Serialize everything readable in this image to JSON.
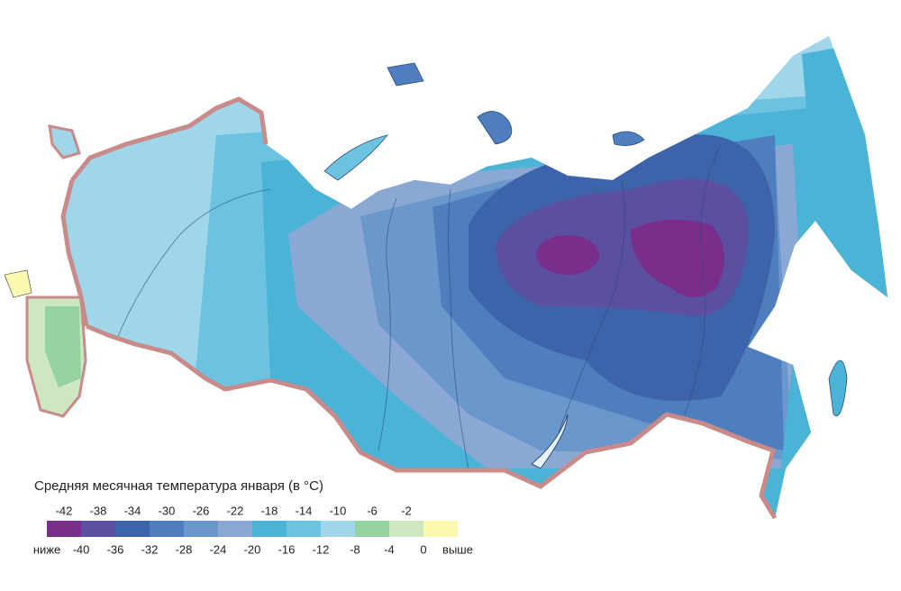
{
  "legend": {
    "title": "Средняя месячная температура января (в °C)",
    "upper_labels": [
      -42,
      -38,
      -34,
      -30,
      -26,
      -22,
      -18,
      -14,
      -10,
      -6,
      -2
    ],
    "lower_labels": [
      "ниже",
      -40,
      -36,
      -32,
      -28,
      -24,
      -20,
      -16,
      -12,
      -8,
      -4,
      0,
      "выше"
    ],
    "colors": [
      "#7a2e8c",
      "#5b4fa0",
      "#3d64ab",
      "#4e7ebd",
      "#6a97cc",
      "#8aa8d3",
      "#4ab3d6",
      "#6cc3e0",
      "#9fd6ea",
      "#94d39f",
      "#cde8c0",
      "#fcf8b0"
    ]
  }
}
